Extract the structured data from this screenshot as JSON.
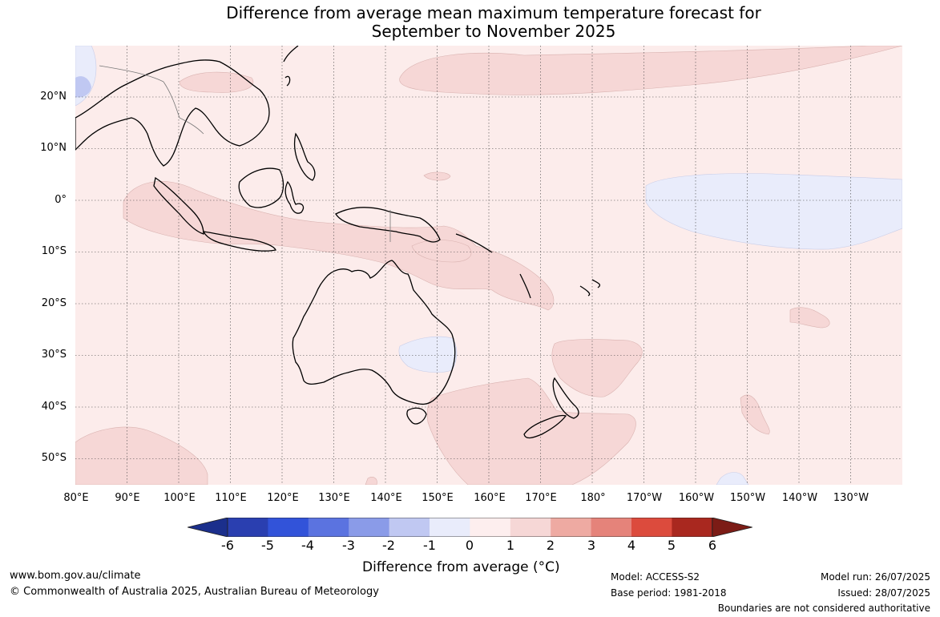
{
  "title": {
    "line1": "Difference from average mean maximum temperature forecast for",
    "line2": "September to November 2025"
  },
  "axes": {
    "lat_labels": [
      "20°N",
      "10°N",
      "0°",
      "10°S",
      "20°S",
      "30°S",
      "40°S",
      "50°S"
    ],
    "lon_labels": [
      "80°E",
      "90°E",
      "100°E",
      "110°E",
      "120°E",
      "130°E",
      "140°E",
      "150°E",
      "160°E",
      "170°E",
      "180°",
      "170°W",
      "160°W",
      "150°W",
      "140°W",
      "130°W"
    ]
  },
  "colorbar": {
    "title": "Difference from average (°C)",
    "ticks": [
      "-6",
      "-5",
      "-4",
      "-3",
      "-2",
      "-1",
      "0",
      "1",
      "2",
      "3",
      "4",
      "5",
      "6"
    ],
    "colors": [
      "#1b2f8c",
      "#2a3fb0",
      "#3253d9",
      "#5b73e0",
      "#8a9be8",
      "#c0c8f2",
      "#e9ecfb",
      "#fdeeee",
      "#f6d7d6",
      "#eeaaa2",
      "#e5837a",
      "#dc4b3d",
      "#a9281f",
      "#7c1c16"
    ]
  },
  "footer": {
    "url": "www.bom.gov.au/climate",
    "copyright": "© Commonwealth of Australia 2025, Australian Bureau of Meteorology",
    "model": "Model: ACCESS-S2",
    "base_period": "Base period: 1981-2018",
    "model_run": "Model run: 26/07/2025",
    "issued": "Issued: 28/07/2025",
    "disclaimer": "Boundaries are not considered authoritative"
  }
}
